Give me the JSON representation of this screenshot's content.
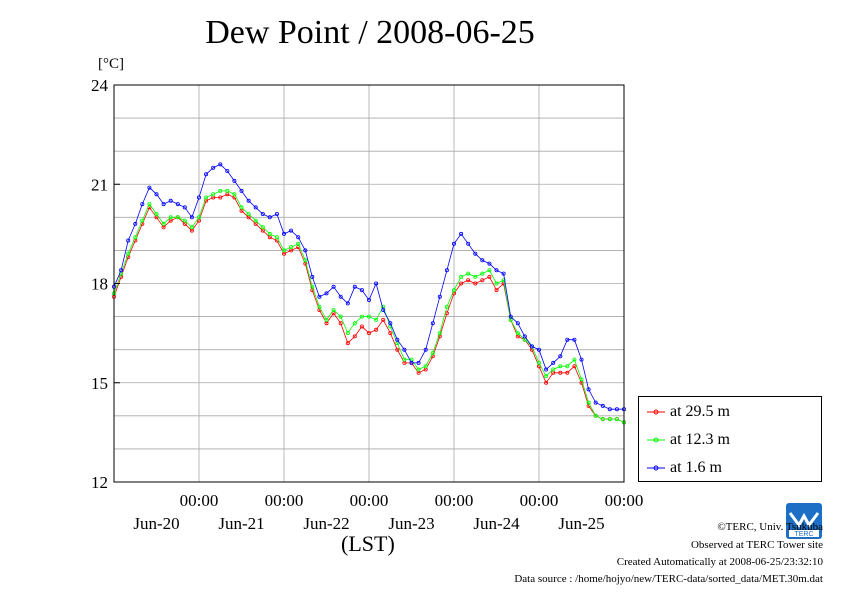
{
  "chart_data": {
    "type": "line",
    "title": "Dew Point / 2008-06-25",
    "ylabel": "[°C]",
    "xlabel": "(LST)",
    "ylim": [
      12,
      24
    ],
    "yticks": [
      "12",
      "15",
      "18",
      "21",
      "24"
    ],
    "xlim_hours": [
      0,
      144
    ],
    "xticks": [
      {
        "time": "00:00",
        "date": "Jun-20",
        "hour": 24
      },
      {
        "time": "00:00",
        "date": "Jun-21",
        "hour": 48
      },
      {
        "time": "00:00",
        "date": "Jun-22",
        "hour": 72
      },
      {
        "time": "00:00",
        "date": "Jun-23",
        "hour": 96
      },
      {
        "time": "00:00",
        "date": "Jun-24",
        "hour": 120
      },
      {
        "time": "00:00",
        "date": "Jun-25",
        "hour": 144
      }
    ],
    "grid": true,
    "legend_position": "right-bottom",
    "hours": [
      0,
      2,
      4,
      6,
      8,
      10,
      12,
      14,
      16,
      18,
      20,
      22,
      24,
      26,
      28,
      30,
      32,
      34,
      36,
      38,
      40,
      42,
      44,
      46,
      48,
      50,
      52,
      54,
      56,
      58,
      60,
      62,
      64,
      66,
      68,
      70,
      72,
      74,
      76,
      78,
      80,
      82,
      84,
      86,
      88,
      90,
      92,
      94,
      96,
      98,
      100,
      102,
      104,
      106,
      108,
      110,
      112,
      114,
      116,
      118,
      120,
      122,
      124,
      126,
      128,
      130,
      132,
      134,
      136,
      138,
      140,
      142,
      144
    ],
    "series": [
      {
        "name": "at 29.5 m",
        "color": "#ff0000",
        "values": [
          17.6,
          18.2,
          18.8,
          19.3,
          19.8,
          20.3,
          20.0,
          19.7,
          19.9,
          20.0,
          19.8,
          19.6,
          19.9,
          20.5,
          20.6,
          20.6,
          20.7,
          20.6,
          20.2,
          20.0,
          19.8,
          19.6,
          19.4,
          19.3,
          18.9,
          19.0,
          19.1,
          18.6,
          17.8,
          17.2,
          16.8,
          17.1,
          16.8,
          16.2,
          16.4,
          16.7,
          16.5,
          16.6,
          16.9,
          16.5,
          16.0,
          15.6,
          15.6,
          15.3,
          15.4,
          15.8,
          16.4,
          17.1,
          17.7,
          18.0,
          18.1,
          18.0,
          18.1,
          18.2,
          17.8,
          18.0,
          16.9,
          16.4,
          16.3,
          16.0,
          15.5,
          15.0,
          15.3,
          15.3,
          15.3,
          15.5,
          15.0,
          14.3,
          14.0,
          13.9,
          13.9,
          13.9,
          13.8
        ]
      },
      {
        "name": "at 12.3 m",
        "color": "#00ff00",
        "values": [
          17.7,
          18.3,
          18.9,
          19.4,
          19.9,
          20.4,
          20.1,
          19.8,
          20.0,
          20.0,
          19.9,
          19.7,
          20.0,
          20.6,
          20.7,
          20.8,
          20.8,
          20.7,
          20.3,
          20.1,
          19.9,
          19.7,
          19.5,
          19.4,
          19.0,
          19.1,
          19.2,
          18.7,
          17.9,
          17.3,
          16.9,
          17.2,
          17.0,
          16.5,
          16.8,
          17.0,
          17.0,
          16.9,
          17.3,
          16.7,
          16.2,
          15.7,
          15.7,
          15.4,
          15.5,
          15.9,
          16.5,
          17.3,
          17.8,
          18.2,
          18.3,
          18.2,
          18.3,
          18.4,
          18.0,
          18.1,
          16.9,
          16.5,
          16.3,
          16.1,
          15.6,
          15.2,
          15.4,
          15.5,
          15.5,
          15.7,
          15.1,
          14.4,
          14.0,
          13.9,
          13.9,
          13.9,
          13.8
        ]
      },
      {
        "name": "at 1.6 m",
        "color": "#0000ff",
        "values": [
          17.9,
          18.4,
          19.3,
          19.8,
          20.4,
          20.9,
          20.7,
          20.4,
          20.5,
          20.4,
          20.3,
          20.0,
          20.6,
          21.3,
          21.5,
          21.6,
          21.4,
          21.1,
          20.8,
          20.5,
          20.3,
          20.1,
          20.0,
          20.1,
          19.5,
          19.6,
          19.4,
          19.0,
          18.2,
          17.6,
          17.7,
          17.9,
          17.6,
          17.4,
          17.9,
          17.8,
          17.5,
          18.0,
          17.2,
          16.8,
          16.3,
          16.0,
          15.6,
          15.6,
          16.0,
          16.8,
          17.6,
          18.4,
          19.2,
          19.5,
          19.2,
          18.9,
          18.7,
          18.6,
          18.4,
          18.3,
          17.0,
          16.8,
          16.4,
          16.1,
          16.0,
          15.4,
          15.6,
          15.8,
          16.3,
          16.3,
          15.7,
          14.8,
          14.4,
          14.3,
          14.2,
          14.2,
          14.2
        ]
      }
    ]
  },
  "legend": {
    "items": [
      {
        "label": "at 29.5 m",
        "color": "#ff0000"
      },
      {
        "label": "at 12.3 m",
        "color": "#00ff00"
      },
      {
        "label": "at 1.6 m",
        "color": "#0000ff"
      }
    ]
  },
  "credits": {
    "copyright": "©TERC, Univ. Tsukuba",
    "site": "Observed at TERC Tower site",
    "created": "Created Automatically at 2008-06-25/23:32:10",
    "source": "Data source : /home/hojyo/new/TERC-data/sorted_data/MET.30m.dat",
    "logo_text": "TERC",
    "logo_icon": "terc-logo-icon"
  }
}
